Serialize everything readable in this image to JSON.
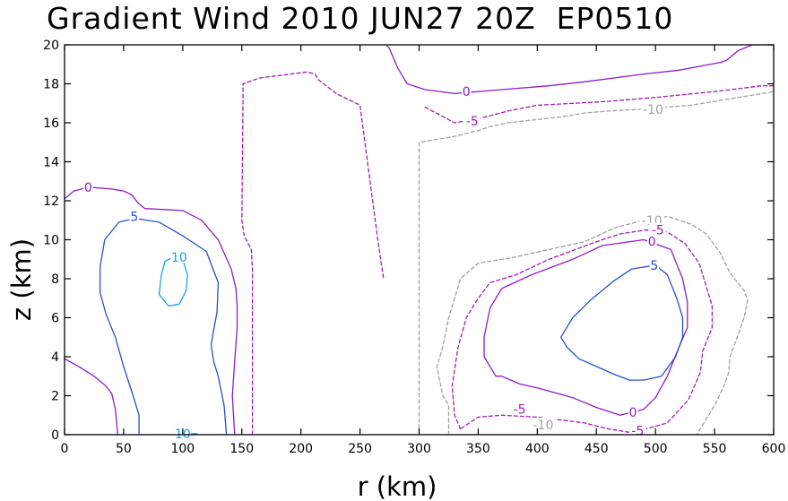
{
  "chart_data": {
    "type": "contour",
    "title": "Gradient Wind 2010 JUN27 20Z  EP0510",
    "xlabel": "r (km)",
    "ylabel": "z (km)",
    "xlim": [
      0,
      600
    ],
    "ylim": [
      0,
      20
    ],
    "xticks": [
      0,
      50,
      100,
      150,
      200,
      250,
      300,
      350,
      400,
      450,
      500,
      550,
      600
    ],
    "yticks": [
      0,
      2,
      4,
      6,
      8,
      10,
      12,
      14,
      16,
      18,
      20
    ],
    "levels": [
      {
        "value": 10,
        "color": "#1ea0e6",
        "style": "solid"
      },
      {
        "value": 5,
        "color": "#2850d2",
        "style": "solid"
      },
      {
        "value": 0,
        "color": "#8c1ec8",
        "style": "solid"
      },
      {
        "value": -5,
        "color": "#a01eb4",
        "style": "dashed"
      },
      {
        "value": -10,
        "color": "#a0a0a0",
        "style": "dashed"
      }
    ],
    "contours": [
      {
        "level": 10,
        "color": "#1ea0e6",
        "style": "solid",
        "points": [
          [
            80,
            7.2
          ],
          [
            82,
            8.2
          ],
          [
            85,
            8.9
          ],
          [
            92,
            9.1
          ],
          [
            100,
            9.0
          ],
          [
            104,
            8.2
          ],
          [
            103,
            7.4
          ],
          [
            97,
            6.7
          ],
          [
            88,
            6.6
          ],
          [
            80,
            7.2
          ]
        ]
      },
      {
        "level": 10,
        "color": "#1ea0e6",
        "style": "solid",
        "points": [
          [
            95,
            0.05
          ],
          [
            112,
            0.05
          ]
        ]
      },
      {
        "level": 5,
        "color": "#2850d2",
        "style": "solid",
        "points": [
          [
            63,
            0
          ],
          [
            63,
            1.0
          ],
          [
            58,
            2.0
          ],
          [
            50,
            3.5
          ],
          [
            43,
            5.0
          ],
          [
            35,
            6.2
          ],
          [
            30,
            7.3
          ],
          [
            30,
            8.6
          ],
          [
            34,
            10.0
          ],
          [
            46,
            10.9
          ],
          [
            60,
            11.1
          ],
          [
            80,
            10.9
          ],
          [
            100,
            10.2
          ],
          [
            120,
            9.4
          ],
          [
            130,
            7.8
          ],
          [
            129,
            6.3
          ],
          [
            126,
            5.3
          ],
          [
            124,
            4.6
          ],
          [
            126,
            3.8
          ],
          [
            130,
            3.0
          ],
          [
            135,
            1.5
          ],
          [
            137,
            0
          ]
        ]
      },
      {
        "level": 0,
        "color": "#8c1ec8",
        "style": "solid",
        "points": [
          [
            0,
            12.1
          ],
          [
            8,
            12.5
          ],
          [
            20,
            12.7
          ],
          [
            40,
            12.6
          ],
          [
            50,
            12.5
          ],
          [
            57,
            12.3
          ],
          [
            62,
            11.9
          ],
          [
            68,
            11.6
          ],
          [
            100,
            11.5
          ],
          [
            116,
            11.0
          ],
          [
            130,
            10.0
          ],
          [
            141,
            8.5
          ],
          [
            145,
            7.5
          ],
          [
            146,
            6.6
          ],
          [
            146,
            5.5
          ],
          [
            144,
            3.8
          ],
          [
            142,
            2.0
          ],
          [
            143,
            1.0
          ],
          [
            144,
            0
          ]
        ]
      },
      {
        "level": 0,
        "color": "#8c1ec8",
        "style": "solid",
        "points": [
          [
            0,
            3.9
          ],
          [
            12,
            3.5
          ],
          [
            25,
            3.0
          ],
          [
            35,
            2.5
          ],
          [
            40,
            2.1
          ],
          [
            43,
            1.3
          ],
          [
            45,
            0
          ]
        ]
      },
      {
        "level": -5,
        "color": "#a01eb4",
        "style": "dashed",
        "points": [
          [
            159,
            0
          ],
          [
            159,
            8.5
          ],
          [
            158,
            9.5
          ],
          [
            152,
            10.2
          ],
          [
            150,
            11.0
          ],
          [
            151,
            17.3
          ],
          [
            151,
            18.0
          ],
          [
            165,
            18.3
          ],
          [
            205,
            18.6
          ],
          [
            212,
            18.5
          ],
          [
            215,
            18.2
          ],
          [
            230,
            17.5
          ],
          [
            250,
            16.9
          ],
          [
            265,
            10.0
          ],
          [
            270,
            8.0
          ]
        ]
      },
      {
        "level": 0,
        "color": "#8c1ec8",
        "style": "solid",
        "points": [
          [
            270,
            20.2
          ],
          [
            275,
            19.8
          ],
          [
            282,
            18.8
          ],
          [
            290,
            18.0
          ],
          [
            305,
            17.7
          ],
          [
            330,
            17.5
          ],
          [
            370,
            17.7
          ],
          [
            410,
            17.9
          ],
          [
            440,
            18.1
          ],
          [
            490,
            18.5
          ],
          [
            520,
            18.7
          ],
          [
            555,
            19.1
          ],
          [
            560,
            19.2
          ],
          [
            570,
            19.7
          ],
          [
            582,
            20.0
          ],
          [
            600,
            20.0
          ]
        ]
      },
      {
        "level": -5,
        "color": "#a01eb4",
        "style": "dashed",
        "points": [
          [
            305,
            16.8
          ],
          [
            330,
            16.0
          ],
          [
            350,
            16.2
          ],
          [
            375,
            16.6
          ],
          [
            400,
            16.9
          ],
          [
            430,
            17.0
          ],
          [
            460,
            17.1
          ],
          [
            500,
            17.3
          ],
          [
            550,
            17.6
          ],
          [
            590,
            17.9
          ],
          [
            600,
            17.9
          ]
        ]
      },
      {
        "level": -10,
        "color": "#a0a0a0",
        "style": "dashed",
        "points": [
          [
            300,
            0
          ],
          [
            300,
            13.8
          ],
          [
            300,
            15.0
          ],
          [
            310,
            15.1
          ],
          [
            330,
            15.3
          ],
          [
            350,
            15.6
          ],
          [
            360,
            15.8
          ],
          [
            375,
            16.0
          ],
          [
            390,
            16.1
          ],
          [
            420,
            16.3
          ],
          [
            440,
            16.5
          ],
          [
            460,
            16.6
          ],
          [
            490,
            16.7
          ],
          [
            530,
            16.9
          ],
          [
            560,
            17.2
          ],
          [
            600,
            17.6
          ]
        ]
      },
      {
        "level": -10,
        "color": "#a0a0a0",
        "style": "dashed",
        "points": [
          [
            325,
            0
          ],
          [
            325,
            1.5
          ],
          [
            320,
            2.0
          ],
          [
            315,
            3.5
          ],
          [
            320,
            4.5
          ],
          [
            325,
            6.0
          ],
          [
            330,
            7.0
          ],
          [
            335,
            8.0
          ],
          [
            350,
            8.8
          ],
          [
            380,
            9.1
          ],
          [
            440,
            9.9
          ],
          [
            465,
            10.6
          ],
          [
            490,
            11.0
          ],
          [
            510,
            11.2
          ],
          [
            530,
            10.8
          ],
          [
            543,
            10.3
          ],
          [
            555,
            9.3
          ],
          [
            563,
            8.3
          ],
          [
            575,
            7.4
          ],
          [
            578,
            6.9
          ],
          [
            575,
            6.0
          ],
          [
            568,
            4.8
          ],
          [
            563,
            4.0
          ],
          [
            562,
            3.2
          ],
          [
            558,
            2.5
          ],
          [
            550,
            1.5
          ],
          [
            540,
            0.5
          ],
          [
            535,
            0
          ]
        ]
      },
      {
        "level": -5,
        "color": "#a01eb4",
        "style": "dashed",
        "points": [
          [
            335,
            0.3
          ],
          [
            330,
            1.0
          ],
          [
            328,
            2.5
          ],
          [
            333,
            4.5
          ],
          [
            340,
            6.0
          ],
          [
            350,
            7.0
          ],
          [
            360,
            7.8
          ],
          [
            382,
            8.2
          ],
          [
            410,
            9.0
          ],
          [
            450,
            9.9
          ],
          [
            470,
            10.3
          ],
          [
            492,
            10.5
          ],
          [
            510,
            10.4
          ],
          [
            525,
            9.8
          ],
          [
            537,
            8.8
          ],
          [
            543,
            7.6
          ],
          [
            548,
            6.6
          ],
          [
            548,
            5.5
          ],
          [
            540,
            4.3
          ],
          [
            538,
            3.2
          ],
          [
            528,
            1.8
          ],
          [
            510,
            0.6
          ],
          [
            480,
            0.1
          ],
          [
            460,
            0.3
          ],
          [
            440,
            0.6
          ],
          [
            400,
            0.9
          ],
          [
            370,
            1.0
          ],
          [
            350,
            0.9
          ],
          [
            335,
            0.3
          ]
        ]
      },
      {
        "level": 0,
        "color": "#8c1ec8",
        "style": "solid",
        "points": [
          [
            365,
            3.0
          ],
          [
            355,
            4.0
          ],
          [
            355,
            5.0
          ],
          [
            360,
            6.5
          ],
          [
            370,
            7.5
          ],
          [
            395,
            8.2
          ],
          [
            430,
            9.0
          ],
          [
            455,
            9.7
          ],
          [
            490,
            10.0
          ],
          [
            513,
            9.5
          ],
          [
            523,
            8.0
          ],
          [
            527,
            6.8
          ],
          [
            527,
            5.5
          ],
          [
            520,
            4.5
          ],
          [
            510,
            3.0
          ],
          [
            500,
            1.9
          ],
          [
            490,
            1.3
          ],
          [
            470,
            1.0
          ],
          [
            450,
            1.4
          ],
          [
            430,
            1.9
          ],
          [
            400,
            2.4
          ],
          [
            385,
            2.6
          ],
          [
            370,
            3.0
          ],
          [
            365,
            3.0
          ]
        ]
      },
      {
        "level": 5,
        "color": "#2850d2",
        "style": "solid",
        "points": [
          [
            420,
            5.0
          ],
          [
            430,
            6.0
          ],
          [
            445,
            6.9
          ],
          [
            465,
            7.9
          ],
          [
            480,
            8.5
          ],
          [
            500,
            8.7
          ],
          [
            510,
            8.2
          ],
          [
            518,
            7.0
          ],
          [
            523,
            6.0
          ],
          [
            523,
            5.0
          ],
          [
            517,
            4.0
          ],
          [
            505,
            3.0
          ],
          [
            490,
            2.8
          ],
          [
            478,
            2.8
          ],
          [
            465,
            3.1
          ],
          [
            450,
            3.5
          ],
          [
            435,
            3.9
          ],
          [
            425,
            4.5
          ],
          [
            420,
            5.0
          ]
        ]
      }
    ],
    "contour_labels": [
      {
        "text": "10",
        "x": 97,
        "y": 9.1,
        "color": "#1ea0e6"
      },
      {
        "text": "10",
        "x": 100,
        "y": 0.05,
        "color": "#1ea0e6"
      },
      {
        "text": "5",
        "x": 59,
        "y": 11.2,
        "color": "#2850d2"
      },
      {
        "text": "0",
        "x": 20,
        "y": 12.7,
        "color": "#8c1ec8"
      },
      {
        "text": "0",
        "x": 340,
        "y": 17.6,
        "color": "#8c1ec8"
      },
      {
        "text": "-5",
        "x": 345,
        "y": 16.1,
        "color": "#a01eb4"
      },
      {
        "text": "-10",
        "x": 498,
        "y": 16.7,
        "color": "#a0a0a0"
      },
      {
        "text": "-10",
        "x": 497,
        "y": 11.0,
        "color": "#a0a0a0"
      },
      {
        "text": "-5",
        "x": 502,
        "y": 10.5,
        "color": "#a01eb4"
      },
      {
        "text": "0",
        "x": 497,
        "y": 9.9,
        "color": "#8c1ec8"
      },
      {
        "text": "5",
        "x": 499,
        "y": 8.7,
        "color": "#2850d2"
      },
      {
        "text": "-5",
        "x": 385,
        "y": 1.3,
        "color": "#a01eb4"
      },
      {
        "text": "-10",
        "x": 405,
        "y": 0.5,
        "color": "#a0a0a0"
      },
      {
        "text": "0",
        "x": 481,
        "y": 1.15,
        "color": "#8c1ec8"
      },
      {
        "text": "-5",
        "x": 485,
        "y": 0.2,
        "color": "#a01eb4"
      }
    ]
  }
}
